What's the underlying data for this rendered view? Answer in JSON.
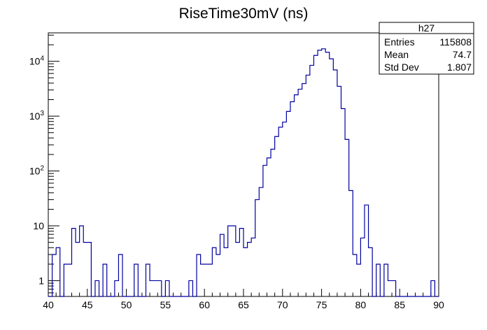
{
  "chart_data": {
    "type": "histogram",
    "title": "RiseTime30mV (ns)",
    "xlabel": "",
    "ylabel": "",
    "xlim": [
      40,
      90
    ],
    "ylim": [
      0.516,
      33000
    ],
    "yscale": "log",
    "bin_width": 0.5,
    "line_color": "#0000a0",
    "x_tick_labels": [
      "40",
      "45",
      "50",
      "55",
      "60",
      "65",
      "70",
      "75",
      "80",
      "85",
      "90"
    ],
    "y_tick_labels": [
      {
        "value": 1,
        "base": "1",
        "exp": ""
      },
      {
        "value": 10,
        "base": "10",
        "exp": ""
      },
      {
        "value": 100,
        "base": "10",
        "exp": "2"
      },
      {
        "value": 1000,
        "base": "10",
        "exp": "3"
      },
      {
        "value": 10000,
        "base": "10",
        "exp": "4"
      }
    ],
    "bin_low_edges_start": 40,
    "counts": [
      0,
      3,
      4,
      0,
      2,
      2,
      9,
      5,
      10,
      5,
      5,
      0,
      1,
      0,
      2,
      0,
      0,
      1,
      3,
      0,
      0,
      0,
      2,
      0,
      0,
      2,
      1,
      1,
      1,
      0,
      1,
      0,
      0,
      0,
      0,
      0,
      1,
      0,
      3,
      2,
      2,
      2,
      4,
      3,
      7,
      4,
      10,
      10,
      5,
      9,
      4,
      5,
      6,
      30,
      50,
      127,
      173,
      250,
      425,
      630,
      780,
      1220,
      1830,
      2450,
      3100,
      3920,
      5600,
      8450,
      12800,
      15900,
      16900,
      14600,
      11100,
      6960,
      3500,
      1370,
      377,
      44,
      3,
      2,
      6,
      24,
      4,
      0,
      2,
      0,
      2,
      1,
      1,
      0,
      0,
      0,
      0,
      0,
      0,
      0,
      0,
      0,
      1,
      0
    ],
    "stats_box": {
      "name": "h27",
      "rows": [
        {
          "label": "Entries",
          "value": "115808"
        },
        {
          "label": "Mean",
          "value": "74.7"
        },
        {
          "label": "Std Dev",
          "value": "1.807"
        }
      ]
    }
  }
}
